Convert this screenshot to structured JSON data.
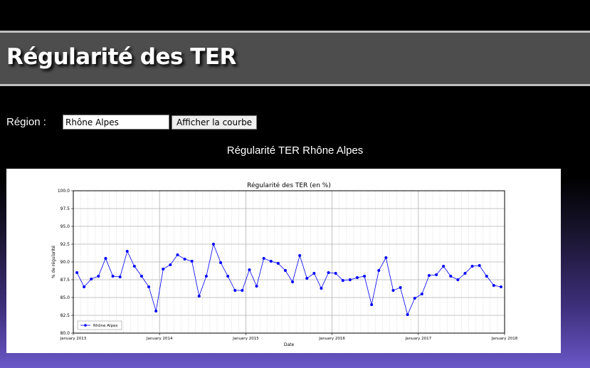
{
  "header": {
    "title": "Régularité des TER"
  },
  "form": {
    "region_label": "Région :",
    "region_value": "Rhône Alpes",
    "button_label": "Afficher la courbe"
  },
  "chart_heading": "Régularité TER Rhône Alpes",
  "colors": {
    "line": "#0000ff",
    "header_bg": "#4d4d4d"
  },
  "chart_data": {
    "type": "line",
    "title": "Régularité des TER (en %)",
    "xlabel": "Date",
    "ylabel": "% de régularité",
    "ylim": [
      80.0,
      100.0
    ],
    "yticks": [
      "80.0",
      "82.5",
      "85.0",
      "87.5",
      "90.0",
      "92.5",
      "95.0",
      "97.5",
      "100.0"
    ],
    "xticks": [
      "January 2013",
      "January 2014",
      "January 2015",
      "January 2016",
      "January 2017",
      "January 2018"
    ],
    "grid": true,
    "legend_position": "lower-left",
    "series": [
      {
        "name": "Rhône Alpes",
        "start": "2013-01",
        "values": [
          88.5,
          86.5,
          87.6,
          88.0,
          90.5,
          88.0,
          87.9,
          91.5,
          89.4,
          88.0,
          86.5,
          83.1,
          89.0,
          89.6,
          91.0,
          90.4,
          90.1,
          85.2,
          88.0,
          92.5,
          89.9,
          88.0,
          86.0,
          86.0,
          88.9,
          86.6,
          90.5,
          90.1,
          89.8,
          88.8,
          87.2,
          90.9,
          87.7,
          88.4,
          86.3,
          88.5,
          88.4,
          87.4,
          87.5,
          87.8,
          88.0,
          84.0,
          88.8,
          90.6,
          86.0,
          86.4,
          82.6,
          84.9,
          85.5,
          88.1,
          88.2,
          89.4,
          88.0,
          87.5,
          88.4,
          89.4,
          89.5,
          88.0,
          86.7,
          86.5
        ]
      }
    ]
  }
}
